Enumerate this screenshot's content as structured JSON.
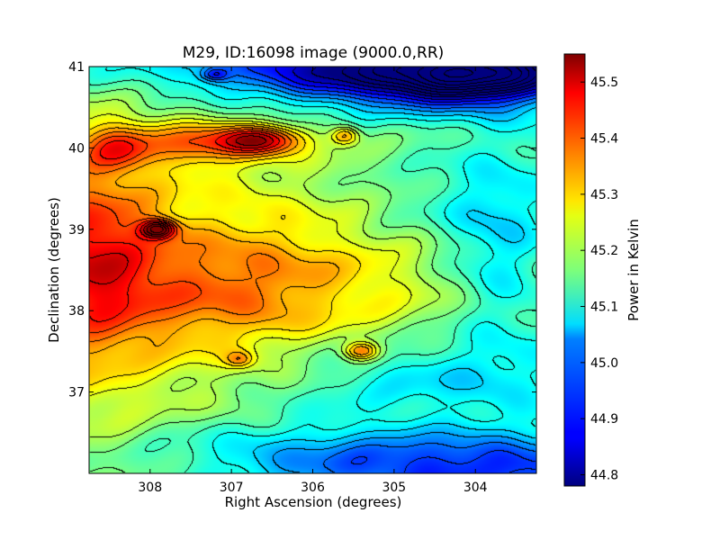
{
  "chart_data": {
    "type": "heatmap",
    "title": "M29, ID:16098 image (9000.0,RR)",
    "xlabel": "Right Ascension (degrees)",
    "ylabel": "Declination (degrees)",
    "colorbar_label": "Power in Kelvin",
    "x_range": [
      308.75,
      303.25
    ],
    "y_range": [
      36.0,
      41.0
    ],
    "x_ticks": [
      308,
      307,
      306,
      305,
      304
    ],
    "y_ticks": [
      37,
      38,
      39,
      40,
      41
    ],
    "colorbar_range": [
      44.78,
      45.55
    ],
    "colorbar_ticks": [
      "44.8",
      "44.9",
      "45.0",
      "45.1",
      "45.2",
      "45.3",
      "45.4",
      "45.5"
    ],
    "colormap": "jet",
    "contours": true,
    "baseline": 45.17,
    "features": [
      {
        "ra": 308.7,
        "dec": 38.6,
        "value": 45.38,
        "sigma_ra": 0.55,
        "sigma_dec": 0.8
      },
      {
        "ra": 307.9,
        "dec": 39.0,
        "value": 45.52,
        "sigma_ra": 0.15,
        "sigma_dec": 0.08
      },
      {
        "ra": 306.6,
        "dec": 40.1,
        "value": 45.46,
        "sigma_ra": 0.35,
        "sigma_dec": 0.12
      },
      {
        "ra": 307.3,
        "dec": 40.05,
        "value": 45.38,
        "sigma_ra": 0.55,
        "sigma_dec": 0.18
      },
      {
        "ra": 308.4,
        "dec": 40.0,
        "value": 45.36,
        "sigma_ra": 0.3,
        "sigma_dec": 0.2
      },
      {
        "ra": 305.6,
        "dec": 40.15,
        "value": 45.38,
        "sigma_ra": 0.12,
        "sigma_dec": 0.08
      },
      {
        "ra": 305.4,
        "dec": 37.5,
        "value": 45.42,
        "sigma_ra": 0.15,
        "sigma_dec": 0.08
      },
      {
        "ra": 306.9,
        "dec": 37.4,
        "value": 45.3,
        "sigma_ra": 0.12,
        "sigma_dec": 0.07
      },
      {
        "ra": 307.2,
        "dec": 38.2,
        "value": 45.3,
        "sigma_ra": 1.0,
        "sigma_dec": 0.5
      },
      {
        "ra": 305.5,
        "dec": 38.6,
        "value": 45.24,
        "sigma_ra": 1.3,
        "sigma_dec": 0.6
      },
      {
        "ra": 304.0,
        "dec": 40.9,
        "value": 44.78,
        "sigma_ra": 0.7,
        "sigma_dec": 0.2
      },
      {
        "ra": 304.8,
        "dec": 40.85,
        "value": 44.95,
        "sigma_ra": 1.2,
        "sigma_dec": 0.3
      },
      {
        "ra": 305.8,
        "dec": 41.0,
        "value": 45.0,
        "sigma_ra": 1.3,
        "sigma_dec": 0.25
      },
      {
        "ra": 303.7,
        "dec": 38.7,
        "value": 45.02,
        "sigma_ra": 0.5,
        "sigma_dec": 0.9
      },
      {
        "ra": 304.8,
        "dec": 37.2,
        "value": 45.05,
        "sigma_ra": 1.2,
        "sigma_dec": 0.35
      },
      {
        "ra": 304.2,
        "dec": 36.05,
        "value": 44.95,
        "sigma_ra": 1.4,
        "sigma_dec": 0.3
      },
      {
        "ra": 306.3,
        "dec": 36.3,
        "value": 45.08,
        "sigma_ra": 1.2,
        "sigma_dec": 0.35
      },
      {
        "ra": 307.2,
        "dec": 40.9,
        "value": 45.0,
        "sigma_ra": 0.12,
        "sigma_dec": 0.06
      },
      {
        "ra": 304.7,
        "dec": 39.2,
        "value": 45.08,
        "sigma_ra": 0.9,
        "sigma_dec": 0.5
      }
    ]
  }
}
